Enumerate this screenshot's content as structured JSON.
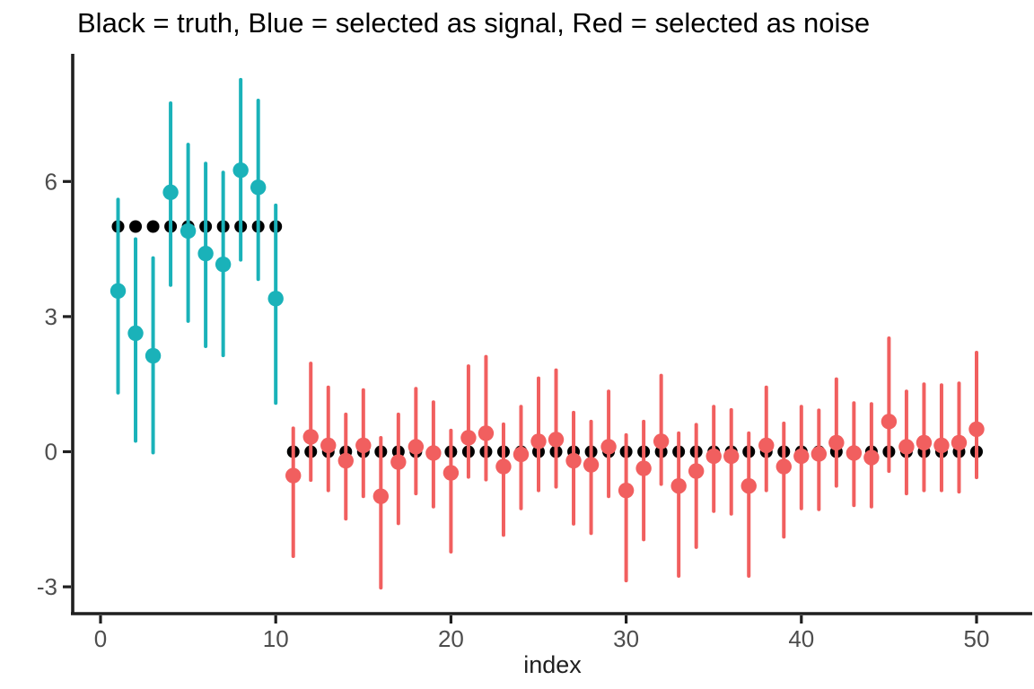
{
  "page": {
    "background": "#ffffff"
  },
  "chart_data": {
    "type": "scatter",
    "subtype": "pointrange",
    "title": "Black = truth, Blue = selected as signal, Red = selected as noise",
    "xlabel": "index",
    "ylabel": "",
    "x_ticks": [
      0,
      10,
      20,
      30,
      40,
      50
    ],
    "y_ticks": [
      -3,
      0,
      3,
      6
    ],
    "xlim": [
      -1.6,
      53.2
    ],
    "ylim": [
      -3.64,
      8.83
    ],
    "grid": false,
    "legend_position": "none",
    "colors": {
      "truth": "#000000",
      "signal": "#1ab2b9",
      "noise": "#f15f5f",
      "axis_line": "#1f1f1f",
      "axis_text": "#4d4d4d"
    },
    "truth": {
      "name": "truth",
      "color": "#000000",
      "point_format": [
        "index",
        "value"
      ],
      "points": [
        [
          1,
          5
        ],
        [
          2,
          5
        ],
        [
          3,
          5
        ],
        [
          4,
          5
        ],
        [
          5,
          5
        ],
        [
          6,
          5
        ],
        [
          7,
          5
        ],
        [
          8,
          5
        ],
        [
          9,
          5
        ],
        [
          10,
          5
        ],
        [
          11,
          0
        ],
        [
          12,
          0
        ],
        [
          13,
          0
        ],
        [
          14,
          0
        ],
        [
          15,
          0
        ],
        [
          16,
          0
        ],
        [
          17,
          0
        ],
        [
          18,
          0
        ],
        [
          19,
          0
        ],
        [
          20,
          0
        ],
        [
          21,
          0
        ],
        [
          22,
          0
        ],
        [
          23,
          0
        ],
        [
          24,
          0
        ],
        [
          25,
          0
        ],
        [
          26,
          0
        ],
        [
          27,
          0
        ],
        [
          28,
          0
        ],
        [
          29,
          0
        ],
        [
          30,
          0
        ],
        [
          31,
          0
        ],
        [
          32,
          0
        ],
        [
          33,
          0
        ],
        [
          34,
          0
        ],
        [
          35,
          0
        ],
        [
          36,
          0
        ],
        [
          37,
          0
        ],
        [
          38,
          0
        ],
        [
          39,
          0
        ],
        [
          40,
          0
        ],
        [
          41,
          0
        ],
        [
          42,
          0
        ],
        [
          43,
          0
        ],
        [
          44,
          0
        ],
        [
          45,
          0
        ],
        [
          46,
          0
        ],
        [
          47,
          0
        ],
        [
          48,
          0
        ],
        [
          49,
          0
        ],
        [
          50,
          0
        ]
      ]
    },
    "series": [
      {
        "key": "signal",
        "name": "selected as signal",
        "color": "#1ab2b9",
        "point_format": [
          "index",
          "estimate",
          "ci_low",
          "ci_high"
        ],
        "points": [
          [
            1,
            3.57,
            1.31,
            5.6
          ],
          [
            2,
            2.63,
            0.24,
            4.72
          ],
          [
            3,
            2.13,
            -0.02,
            4.3
          ],
          [
            4,
            5.76,
            3.7,
            7.74
          ],
          [
            5,
            4.9,
            2.9,
            6.82
          ],
          [
            6,
            4.4,
            2.34,
            6.4
          ],
          [
            7,
            4.16,
            2.14,
            6.2
          ],
          [
            8,
            6.25,
            4.26,
            8.26
          ],
          [
            9,
            5.87,
            3.83,
            7.8
          ],
          [
            10,
            3.4,
            1.08,
            5.47
          ]
        ]
      },
      {
        "key": "noise",
        "name": "selected as noise",
        "color": "#f15f5f",
        "point_format": [
          "index",
          "estimate",
          "ci_low",
          "ci_high"
        ],
        "points": [
          [
            11,
            -0.53,
            -2.32,
            0.52
          ],
          [
            12,
            0.33,
            -0.63,
            1.96
          ],
          [
            13,
            0.14,
            -0.86,
            1.43
          ],
          [
            14,
            -0.2,
            -1.49,
            0.83
          ],
          [
            15,
            0.14,
            -0.99,
            1.37
          ],
          [
            16,
            -0.99,
            -3.02,
            0.31
          ],
          [
            17,
            -0.23,
            -1.59,
            0.83
          ],
          [
            18,
            0.11,
            -0.93,
            1.4
          ],
          [
            19,
            -0.03,
            -1.22,
            1.1
          ],
          [
            20,
            -0.47,
            -2.22,
            0.47
          ],
          [
            21,
            0.31,
            -0.56,
            1.9
          ],
          [
            22,
            0.41,
            -0.62,
            2.11
          ],
          [
            23,
            -0.33,
            -1.85,
            0.61
          ],
          [
            24,
            -0.06,
            -1.26,
            1.0
          ],
          [
            25,
            0.23,
            -0.86,
            1.63
          ],
          [
            26,
            0.27,
            -0.78,
            1.81
          ],
          [
            27,
            -0.2,
            -1.6,
            0.87
          ],
          [
            28,
            -0.29,
            -1.81,
            0.67
          ],
          [
            29,
            0.11,
            -0.99,
            1.34
          ],
          [
            30,
            -0.86,
            -2.86,
            0.37
          ],
          [
            31,
            -0.37,
            -1.95,
            0.67
          ],
          [
            32,
            0.23,
            -0.72,
            1.69
          ],
          [
            33,
            -0.76,
            -2.76,
            0.41
          ],
          [
            34,
            -0.43,
            -2.12,
            0.6
          ],
          [
            35,
            -0.1,
            -1.32,
            1.0
          ],
          [
            36,
            -0.1,
            -1.38,
            0.93
          ],
          [
            37,
            -0.76,
            -2.76,
            0.41
          ],
          [
            38,
            0.14,
            -0.86,
            1.43
          ],
          [
            39,
            -0.33,
            -1.89,
            0.63
          ],
          [
            40,
            -0.1,
            -1.26,
            1.0
          ],
          [
            41,
            -0.05,
            -1.28,
            0.92
          ],
          [
            42,
            0.2,
            -0.76,
            1.61
          ],
          [
            43,
            -0.03,
            -1.19,
            1.08
          ],
          [
            44,
            -0.13,
            -1.22,
            1.06
          ],
          [
            45,
            0.67,
            -0.43,
            2.52
          ],
          [
            46,
            0.11,
            -0.93,
            1.34
          ],
          [
            47,
            0.2,
            -0.86,
            1.5
          ],
          [
            48,
            0.14,
            -0.86,
            1.48
          ],
          [
            49,
            0.2,
            -0.89,
            1.52
          ],
          [
            50,
            0.5,
            -0.57,
            2.2
          ]
        ]
      }
    ]
  }
}
